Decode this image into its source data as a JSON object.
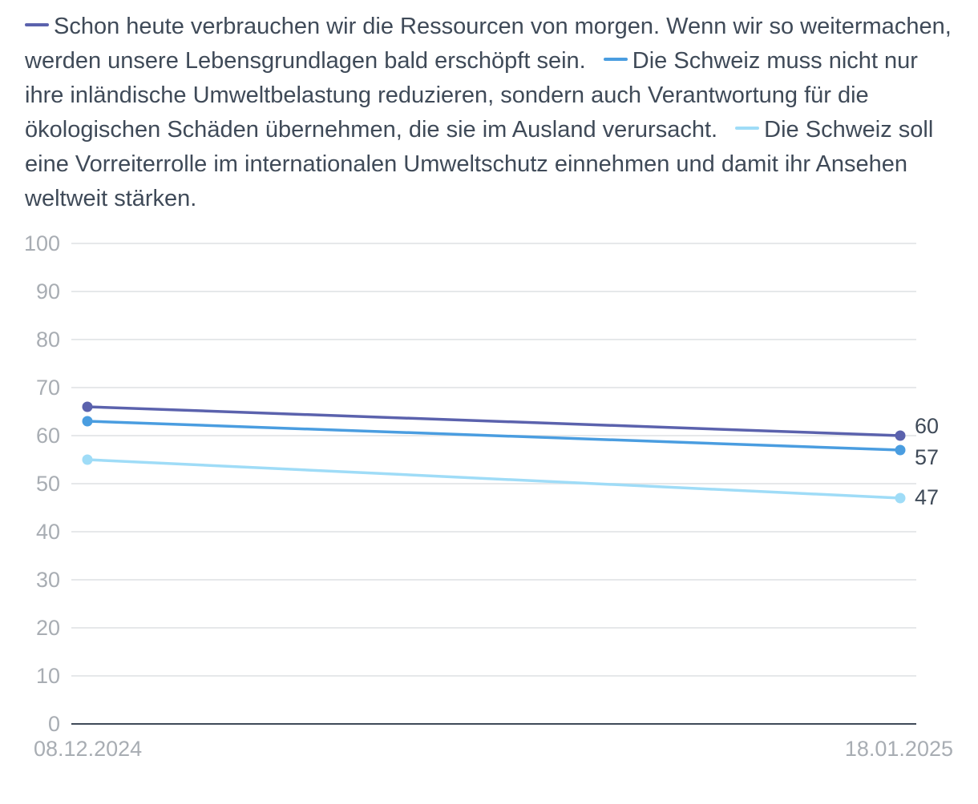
{
  "chart_data": {
    "type": "line",
    "categories": [
      "08.12.2024",
      "18.01.2025"
    ],
    "ylim": [
      0,
      100
    ],
    "yticks": [
      0,
      10,
      20,
      30,
      40,
      50,
      60,
      70,
      80,
      90,
      100
    ],
    "grid": true,
    "legend_position": "top",
    "series": [
      {
        "name": "Schon heute verbrauchen wir die Ressourcen von morgen. Wenn wir so weitermachen, werden unsere Lebensgrundlagen bald erschöpft sein.",
        "color": "#5b62ad",
        "values": [
          66,
          60
        ],
        "end_label": "60"
      },
      {
        "name": "Die Schweiz muss nicht nur ihre inländische Umweltbelastung reduzieren, sondern auch Verantwortung für die ökologischen Schäden übernehmen, die sie im Ausland verursacht.",
        "color": "#4a9de0",
        "values": [
          63,
          57
        ],
        "end_label": "57"
      },
      {
        "name": "Die Schweiz soll eine Vorreiterrolle im internationalen Umweltschutz einnehmen und damit ihr Ansehen weltweit stärken.",
        "color": "#9fdcf7",
        "values": [
          55,
          47
        ],
        "end_label": "47"
      }
    ]
  }
}
